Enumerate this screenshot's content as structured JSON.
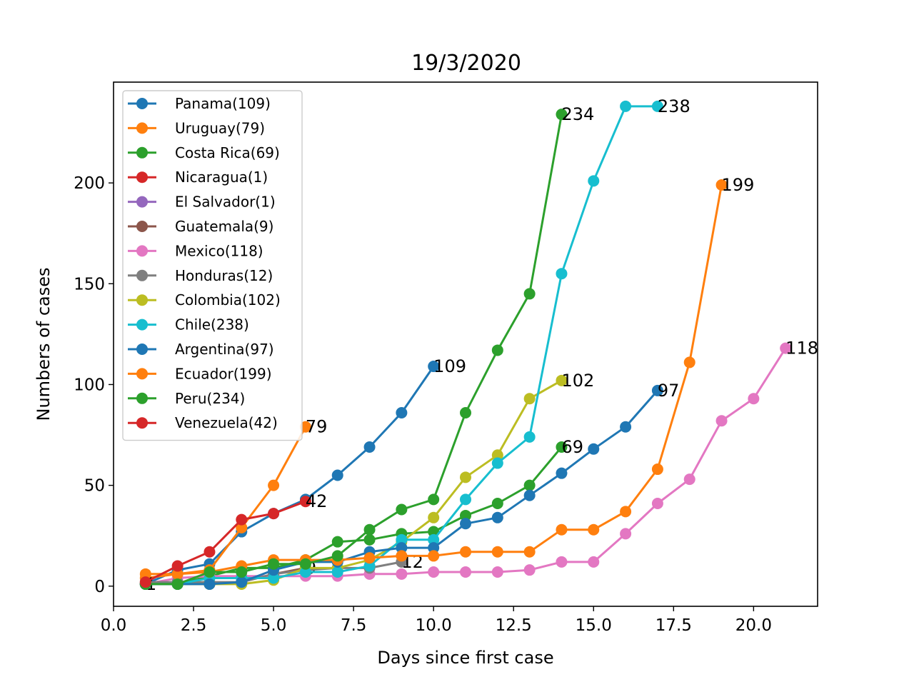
{
  "chart_data": {
    "type": "line",
    "title": "19/3/2020",
    "xlabel": "Days since first case",
    "ylabel": "Numbers of cases",
    "xlim": [
      0,
      22
    ],
    "ylim": [
      -10,
      250
    ],
    "xticks": [
      "0.0",
      "2.5",
      "5.0",
      "7.5",
      "10.0",
      "12.5",
      "15.0",
      "17.5",
      "20.0"
    ],
    "yticks": [
      "0",
      "50",
      "100",
      "150",
      "200"
    ],
    "grid": false,
    "legend_position": "upper-left",
    "series": [
      {
        "name": "Panama(109)",
        "color": "#1f77b4",
        "x": [
          1,
          2,
          3,
          4,
          5,
          6,
          7,
          8,
          9,
          10
        ],
        "y": [
          1,
          8,
          11,
          27,
          36,
          43,
          55,
          69,
          86,
          109
        ],
        "end_label": "109"
      },
      {
        "name": "Uruguay(79)",
        "color": "#ff7f0e",
        "x": [
          1,
          2,
          3,
          4,
          5,
          6
        ],
        "y": [
          4,
          6,
          8,
          29,
          50,
          79
        ],
        "end_label": "79"
      },
      {
        "name": "Costa Rica(69)",
        "color": "#2ca02c",
        "x": [
          1,
          2,
          3,
          4,
          5,
          6,
          7,
          8,
          9,
          10,
          11,
          12,
          13,
          14
        ],
        "y": [
          1,
          1,
          5,
          9,
          9,
          13,
          22,
          23,
          26,
          27,
          35,
          41,
          50,
          69
        ],
        "end_label": "69"
      },
      {
        "name": "Nicaragua(1)",
        "color": "#d62728",
        "x": [
          1
        ],
        "y": [
          1
        ],
        "end_label": "1"
      },
      {
        "name": "El Salvador(1)",
        "color": "#9467bd",
        "x": [
          1
        ],
        "y": [
          1
        ],
        "end_label": ""
      },
      {
        "name": "Guatemala(9)",
        "color": "#8c564b",
        "x": [
          1,
          2,
          3,
          4,
          5,
          6
        ],
        "y": [
          1,
          1,
          1,
          2,
          6,
          9
        ],
        "end_label": "9"
      },
      {
        "name": "Mexico(118)",
        "color": "#e377c2",
        "x": [
          1,
          2,
          3,
          4,
          5,
          6,
          7,
          8,
          9,
          10,
          11,
          12,
          13,
          14,
          15,
          16,
          17,
          18,
          19,
          20,
          21
        ],
        "y": [
          1,
          4,
          5,
          5,
          5,
          5,
          5,
          6,
          6,
          7,
          7,
          7,
          8,
          12,
          12,
          26,
          41,
          53,
          82,
          93,
          118
        ],
        "end_label": "118"
      },
      {
        "name": "Honduras(12)",
        "color": "#7f7f7f",
        "x": [
          1,
          2,
          3,
          4,
          5,
          6,
          7,
          8,
          9
        ],
        "y": [
          2,
          2,
          2,
          2,
          6,
          8,
          9,
          9,
          12
        ],
        "end_label": "12"
      },
      {
        "name": "Colombia(102)",
        "color": "#bcbd22",
        "x": [
          1,
          2,
          3,
          4,
          5,
          6,
          7,
          8,
          9,
          10,
          11,
          12,
          13,
          14
        ],
        "y": [
          1,
          1,
          1,
          1,
          3,
          9,
          9,
          13,
          22,
          34,
          54,
          65,
          93,
          102
        ],
        "end_label": "102"
      },
      {
        "name": "Chile(238)",
        "color": "#17becf",
        "x": [
          1,
          2,
          3,
          4,
          5,
          6,
          7,
          8,
          9,
          10,
          11,
          12,
          13,
          14,
          15,
          16,
          17
        ],
        "y": [
          1,
          1,
          4,
          4,
          4,
          7,
          7,
          10,
          23,
          23,
          43,
          61,
          74,
          155,
          201,
          238,
          238
        ],
        "end_label": "238"
      },
      {
        "name": "Argentina(97)",
        "color": "#1f77b4",
        "x": [
          1,
          2,
          3,
          4,
          5,
          6,
          7,
          8,
          9,
          10,
          11,
          12,
          13,
          14,
          15,
          16,
          17
        ],
        "y": [
          1,
          1,
          1,
          2,
          8,
          12,
          12,
          17,
          19,
          19,
          31,
          34,
          45,
          56,
          68,
          79,
          97
        ],
        "end_label": "97"
      },
      {
        "name": "Ecuador(199)",
        "color": "#ff7f0e",
        "x": [
          1,
          2,
          3,
          4,
          5,
          6,
          7,
          8,
          9,
          10,
          11,
          12,
          13,
          14,
          15,
          16,
          17,
          18,
          19
        ],
        "y": [
          6,
          6,
          7,
          10,
          13,
          13,
          13,
          14,
          15,
          15,
          17,
          17,
          17,
          28,
          28,
          37,
          58,
          111,
          199
        ],
        "end_label": "199"
      },
      {
        "name": "Peru(234)",
        "color": "#2ca02c",
        "x": [
          1,
          2,
          3,
          4,
          5,
          6,
          7,
          8,
          9,
          10,
          11,
          12,
          13,
          14
        ],
        "y": [
          1,
          1,
          7,
          7,
          11,
          11,
          15,
          28,
          38,
          43,
          86,
          117,
          145,
          234
        ],
        "end_label": "234"
      },
      {
        "name": "Venezuela(42)",
        "color": "#d62728",
        "x": [
          1,
          2,
          3,
          4,
          5,
          6
        ],
        "y": [
          2,
          10,
          17,
          33,
          36,
          42
        ],
        "end_label": "42"
      }
    ]
  }
}
